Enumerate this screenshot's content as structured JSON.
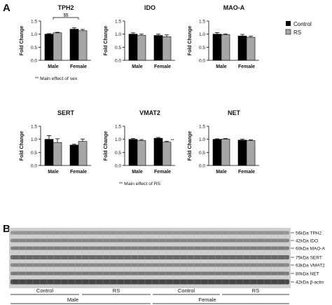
{
  "panel_labels": {
    "a": "A",
    "b": "B"
  },
  "legend": [
    {
      "label": "Control",
      "color": "#000000"
    },
    {
      "label": "RS",
      "color": "#a6a6a6"
    }
  ],
  "colors": {
    "control": "#000000",
    "rs": "#a6a6a6",
    "axis": "#000000"
  },
  "chart_data": [
    {
      "type": "bar",
      "title": "TPH2",
      "ylabel": "Fold Change",
      "xlabel": "",
      "categories": [
        "Male",
        "Female"
      ],
      "ylim": [
        0,
        1.5
      ],
      "yticks": [
        "0.0",
        "0.5",
        "1.0",
        "1.5"
      ],
      "series": [
        {
          "name": "Control",
          "values": [
            1.0,
            1.19
          ],
          "errors": [
            0.02,
            0.05
          ]
        },
        {
          "name": "RS",
          "values": [
            1.05,
            1.13
          ],
          "errors": [
            0.02,
            0.05
          ]
        }
      ],
      "annotations": [
        {
          "text": "$$",
          "between": [
            0,
            1
          ]
        }
      ],
      "footnote": "** Main effect of sex"
    },
    {
      "type": "bar",
      "title": "IDO",
      "ylabel": "Fold Change",
      "xlabel": "",
      "categories": [
        "Male",
        "Female"
      ],
      "ylim": [
        0,
        1.5
      ],
      "yticks": [
        "0.0",
        "0.5",
        "1.0",
        "1.5"
      ],
      "series": [
        {
          "name": "Control",
          "values": [
            1.0,
            0.95
          ],
          "errors": [
            0.05,
            0.05
          ]
        },
        {
          "name": "RS",
          "values": [
            0.95,
            0.9
          ],
          "errors": [
            0.05,
            0.07
          ]
        }
      ]
    },
    {
      "type": "bar",
      "title": "MAO-A",
      "ylabel": "Fold Change",
      "xlabel": "",
      "categories": [
        "Male",
        "Female"
      ],
      "ylim": [
        0,
        1.5
      ],
      "yticks": [
        "0.0",
        "0.5",
        "1.0",
        "1.5"
      ],
      "series": [
        {
          "name": "Control",
          "values": [
            1.0,
            0.93
          ],
          "errors": [
            0.06,
            0.06
          ]
        },
        {
          "name": "RS",
          "values": [
            0.98,
            0.88
          ],
          "errors": [
            0.03,
            0.04
          ]
        }
      ]
    },
    {
      "type": "bar",
      "title": "SERT",
      "ylabel": "Fold Change",
      "xlabel": "",
      "categories": [
        "Male",
        "Female"
      ],
      "ylim": [
        0,
        1.5
      ],
      "yticks": [
        "0.0",
        "0.5",
        "1.0",
        "1.5"
      ],
      "series": [
        {
          "name": "Control",
          "values": [
            1.0,
            0.78
          ],
          "errors": [
            0.14,
            0.03
          ]
        },
        {
          "name": "RS",
          "values": [
            0.88,
            0.92
          ],
          "errors": [
            0.14,
            0.09
          ]
        }
      ]
    },
    {
      "type": "bar",
      "title": "VMAT2",
      "ylabel": "Fold Change",
      "xlabel": "",
      "categories": [
        "Male",
        "Female"
      ],
      "ylim": [
        0,
        1.5
      ],
      "yticks": [
        "0.0",
        "0.5",
        "1.0",
        "1.5"
      ],
      "series": [
        {
          "name": "Control",
          "values": [
            1.0,
            1.04
          ],
          "errors": [
            0.03,
            0.03
          ]
        },
        {
          "name": "RS",
          "values": [
            0.95,
            0.89
          ],
          "errors": [
            0.04,
            0.03
          ]
        }
      ],
      "annotations": [
        {
          "text": "**",
          "series": 1,
          "category": 1
        }
      ],
      "footnote": "** Main effect of RS"
    },
    {
      "type": "bar",
      "title": "NET",
      "ylabel": "Fold Change",
      "xlabel": "",
      "categories": [
        "Male",
        "Female"
      ],
      "ylim": [
        0,
        1.5
      ],
      "yticks": [
        "0.0",
        "0.5",
        "1.0",
        "1.5"
      ],
      "series": [
        {
          "name": "Control",
          "values": [
            1.0,
            0.97
          ],
          "errors": [
            0.02,
            0.04
          ]
        },
        {
          "name": "RS",
          "values": [
            1.01,
            0.95
          ],
          "errors": [
            0.02,
            0.03
          ]
        }
      ]
    }
  ],
  "blot": {
    "bands": [
      "56kDa TPH2",
      "42kDa IDO",
      "60kDa MAO-A",
      "75kDa SERT",
      "63kDa VMAT2",
      "80kDa NET",
      "42kDa β-actin"
    ],
    "groups": [
      "Control",
      "RS",
      "Control",
      "RS"
    ],
    "sexes": [
      "Male",
      "Female"
    ]
  }
}
